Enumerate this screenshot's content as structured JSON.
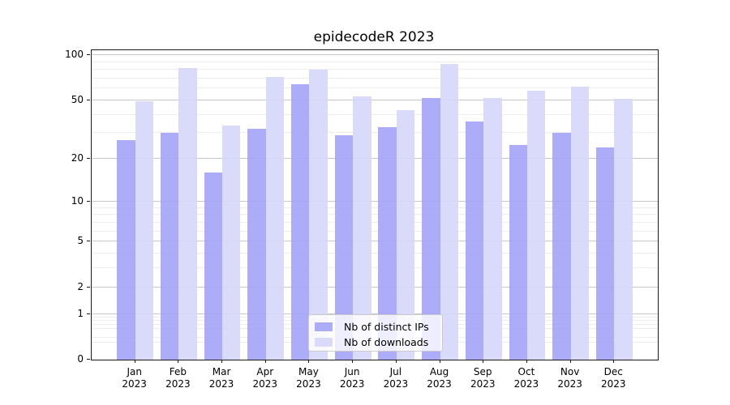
{
  "chart_data": {
    "type": "bar",
    "title": "epidecodeR 2023",
    "categories": [
      "Jan 2023",
      "Feb 2023",
      "Mar 2023",
      "Apr 2023",
      "May 2023",
      "Jun 2023",
      "Jul 2023",
      "Aug 2023",
      "Sep 2023",
      "Oct 2023",
      "Nov 2023",
      "Dec 2023"
    ],
    "series": [
      {
        "name": "Nb of distinct IPs",
        "color": "#a5a5f6",
        "fill": "rgba(160,160,247,0.88)",
        "values": [
          27,
          30,
          16,
          32,
          64,
          29,
          33,
          52,
          36,
          25,
          30,
          24
        ]
      },
      {
        "name": "Nb of downloads",
        "color": "#d9d9f9",
        "fill": "rgba(214,214,249,0.9)",
        "values": [
          49,
          82,
          34,
          72,
          80,
          53,
          43,
          88,
          52,
          58,
          62,
          51
        ]
      }
    ],
    "y_axis": {
      "scale": "log1p",
      "ticks": [
        0,
        1,
        2,
        5,
        10,
        20,
        50,
        100
      ],
      "minor_gridlines": [
        0.3,
        0.4,
        0.6,
        0.7,
        0.8,
        0.9,
        3,
        4,
        6,
        7,
        8,
        9,
        30,
        40,
        60,
        70,
        80,
        90
      ],
      "ylim": [
        0,
        108
      ]
    },
    "grid": {
      "major_color": "#c8c8c8",
      "minor_color": "#ededed"
    },
    "legend": {
      "position": "lower center inside",
      "entries": [
        "Nb of distinct IPs",
        "Nb of downloads"
      ]
    }
  }
}
